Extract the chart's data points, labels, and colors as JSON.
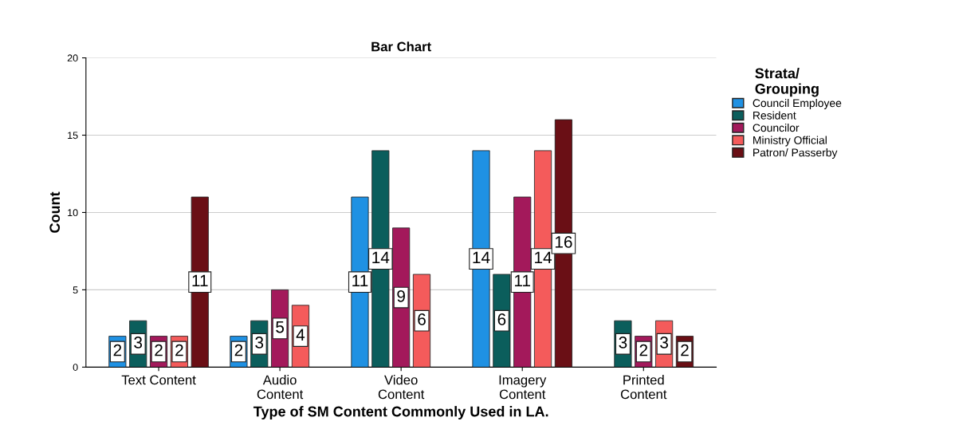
{
  "chart_data": {
    "type": "bar",
    "title": "Bar Chart",
    "xlabel": "Type of SM Content Commonly Used in LA.",
    "ylabel": "Count",
    "legend_title": "Strata/\nGrouping",
    "categories": [
      "Text Content",
      "Audio\nContent",
      "Video\nContent",
      "Imagery\nContent",
      "Printed\nContent"
    ],
    "series": [
      {
        "name": "Council Employee",
        "color": "#1f91e3",
        "values": [
          2,
          2,
          11,
          14,
          null
        ]
      },
      {
        "name": "Resident",
        "color": "#0b5e5c",
        "values": [
          3,
          3,
          14,
          6,
          3
        ]
      },
      {
        "name": "Councilor",
        "color": "#a3195b",
        "values": [
          2,
          5,
          9,
          11,
          2
        ]
      },
      {
        "name": "Ministry Official",
        "color": "#f45b5b",
        "values": [
          2,
          4,
          6,
          14,
          3
        ]
      },
      {
        "name": "Patron/ Passerby",
        "color": "#6a0f15",
        "values": [
          11,
          null,
          null,
          16,
          2
        ]
      }
    ],
    "ylim": [
      0,
      20
    ],
    "yticks": [
      0,
      5,
      10,
      15,
      20
    ],
    "grid": "y",
    "legend": "right",
    "data_labels": true
  }
}
